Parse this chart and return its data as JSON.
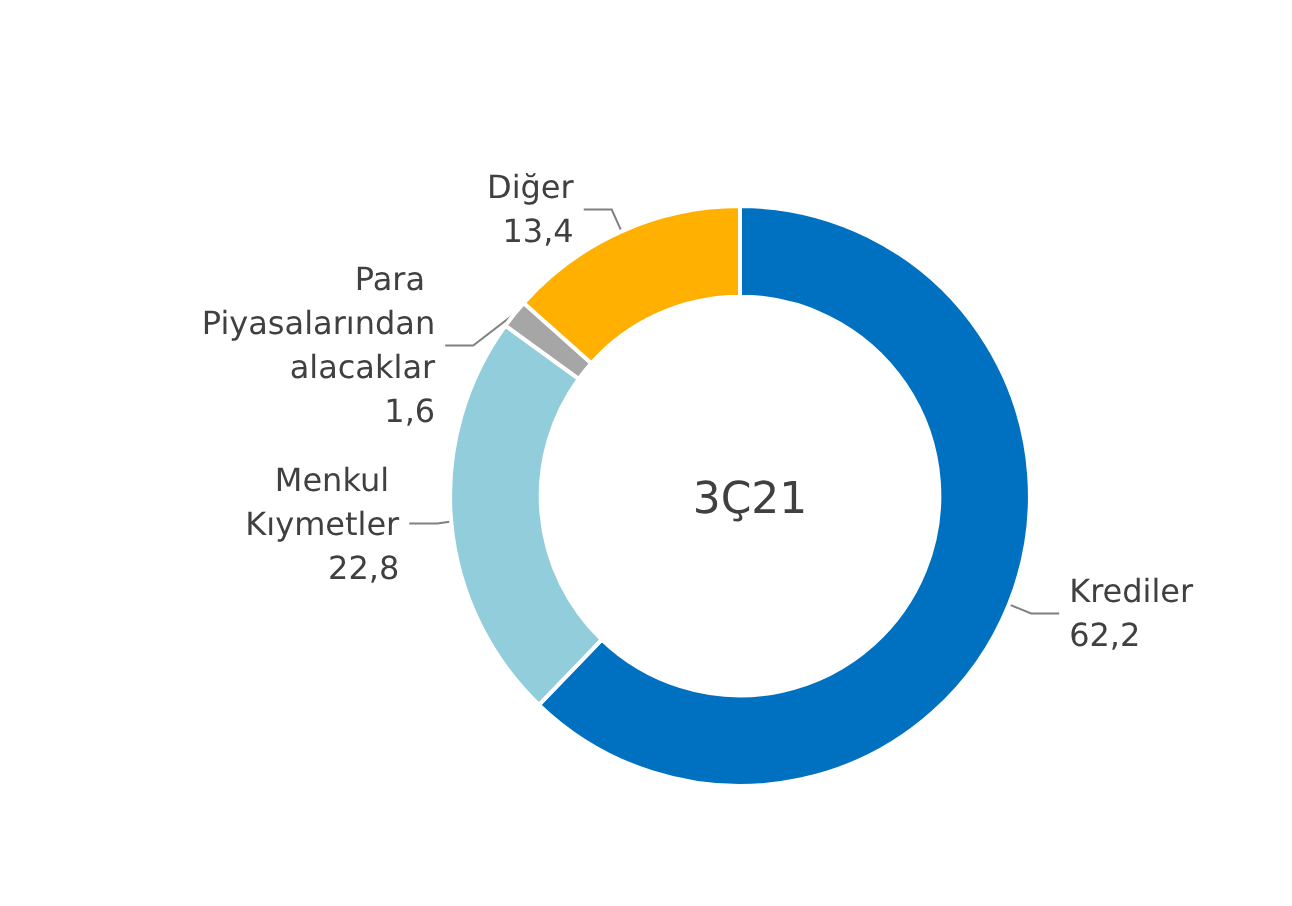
{
  "chart_data": {
    "type": "donut",
    "title": "3Ç21",
    "categories": [
      "Krediler",
      "Menkul Kıymetler",
      "Para Piyasalarından alacaklar",
      "Diğer"
    ],
    "values": [
      62.2,
      22.8,
      1.6,
      13.4
    ],
    "colors": [
      "#0070c0",
      "#92cddc",
      "#a6a6a6",
      "#ffb000"
    ],
    "value_labels": [
      "62,2",
      "22,8",
      "1,6",
      "13,4"
    ],
    "legend": false
  }
}
